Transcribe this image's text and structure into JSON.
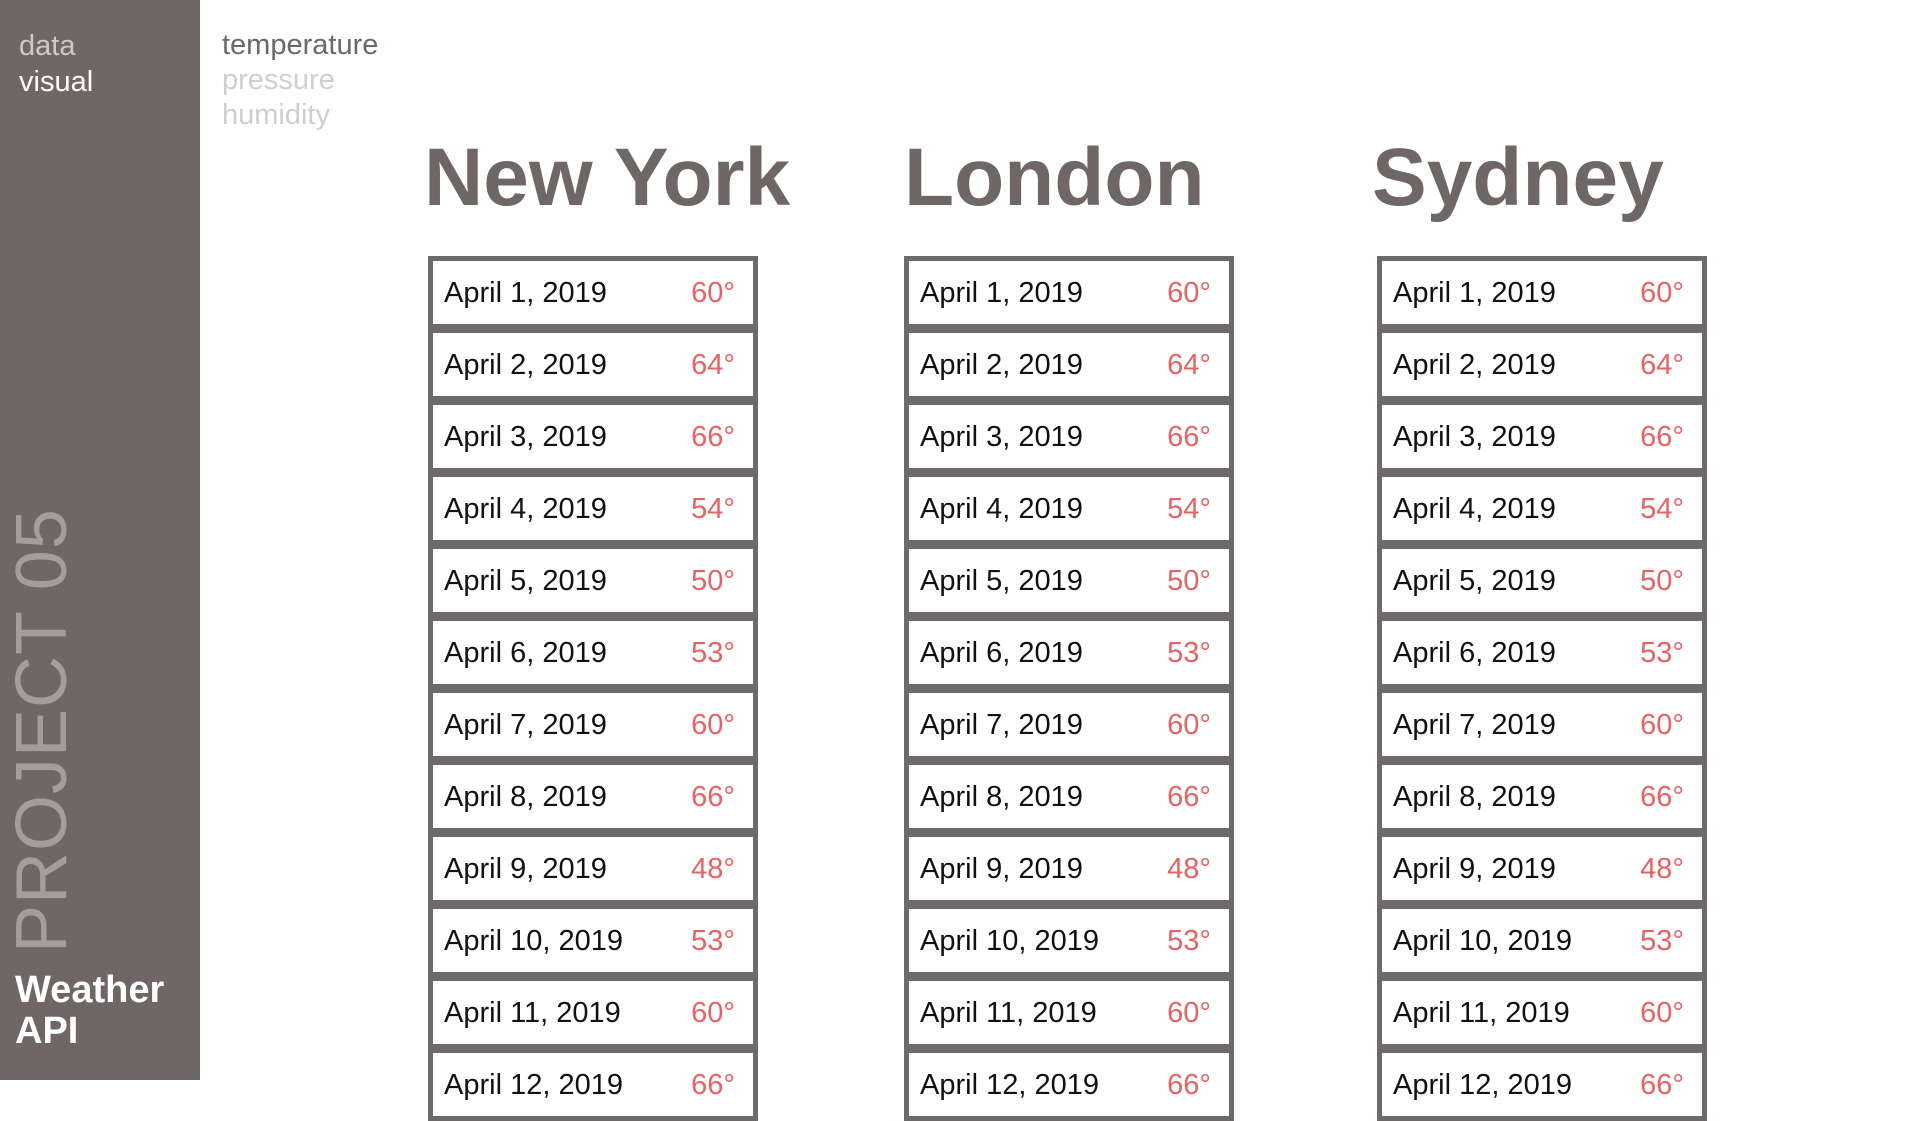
{
  "brand": {
    "line1": "data",
    "line2": "visual"
  },
  "project": {
    "label": "PROJECT 05",
    "name_line1": "Weather",
    "name_line2": "API"
  },
  "metrics": [
    {
      "label": "temperature",
      "active": true
    },
    {
      "label": "pressure",
      "active": false
    },
    {
      "label": "humidity",
      "active": false
    }
  ],
  "colors": {
    "sidebar": "#716666",
    "heading": "#6f6666",
    "temperature": "#e56363",
    "inactive_nav": "#cfcfcf"
  },
  "cities": [
    {
      "name": "New York",
      "readings": [
        {
          "date": "April 1, 2019",
          "temp": "60°"
        },
        {
          "date": "April 2, 2019",
          "temp": "64°"
        },
        {
          "date": "April 3, 2019",
          "temp": "66°"
        },
        {
          "date": "April 4, 2019",
          "temp": "54°"
        },
        {
          "date": "April 5, 2019",
          "temp": "50°"
        },
        {
          "date": "April 6, 2019",
          "temp": "53°"
        },
        {
          "date": "April 7, 2019",
          "temp": "60°"
        },
        {
          "date": "April 8, 2019",
          "temp": "66°"
        },
        {
          "date": "April 9, 2019",
          "temp": "48°"
        },
        {
          "date": "April 10, 2019",
          "temp": "53°"
        },
        {
          "date": "April 11, 2019",
          "temp": "60°"
        },
        {
          "date": "April 12, 2019",
          "temp": "66°"
        }
      ]
    },
    {
      "name": "London",
      "readings": [
        {
          "date": "April 1, 2019",
          "temp": "60°"
        },
        {
          "date": "April 2, 2019",
          "temp": "64°"
        },
        {
          "date": "April 3, 2019",
          "temp": "66°"
        },
        {
          "date": "April 4, 2019",
          "temp": "54°"
        },
        {
          "date": "April 5, 2019",
          "temp": "50°"
        },
        {
          "date": "April 6, 2019",
          "temp": "53°"
        },
        {
          "date": "April 7, 2019",
          "temp": "60°"
        },
        {
          "date": "April 8, 2019",
          "temp": "66°"
        },
        {
          "date": "April 9, 2019",
          "temp": "48°"
        },
        {
          "date": "April 10, 2019",
          "temp": "53°"
        },
        {
          "date": "April 11, 2019",
          "temp": "60°"
        },
        {
          "date": "April 12, 2019",
          "temp": "66°"
        }
      ]
    },
    {
      "name": "Sydney",
      "readings": [
        {
          "date": "April 1, 2019",
          "temp": "60°"
        },
        {
          "date": "April 2, 2019",
          "temp": "64°"
        },
        {
          "date": "April 3, 2019",
          "temp": "66°"
        },
        {
          "date": "April 4, 2019",
          "temp": "54°"
        },
        {
          "date": "April 5, 2019",
          "temp": "50°"
        },
        {
          "date": "April 6, 2019",
          "temp": "53°"
        },
        {
          "date": "April 7, 2019",
          "temp": "60°"
        },
        {
          "date": "April 8, 2019",
          "temp": "66°"
        },
        {
          "date": "April 9, 2019",
          "temp": "48°"
        },
        {
          "date": "April 10, 2019",
          "temp": "53°"
        },
        {
          "date": "April 11, 2019",
          "temp": "60°"
        },
        {
          "date": "April 12, 2019",
          "temp": "66°"
        }
      ]
    }
  ]
}
